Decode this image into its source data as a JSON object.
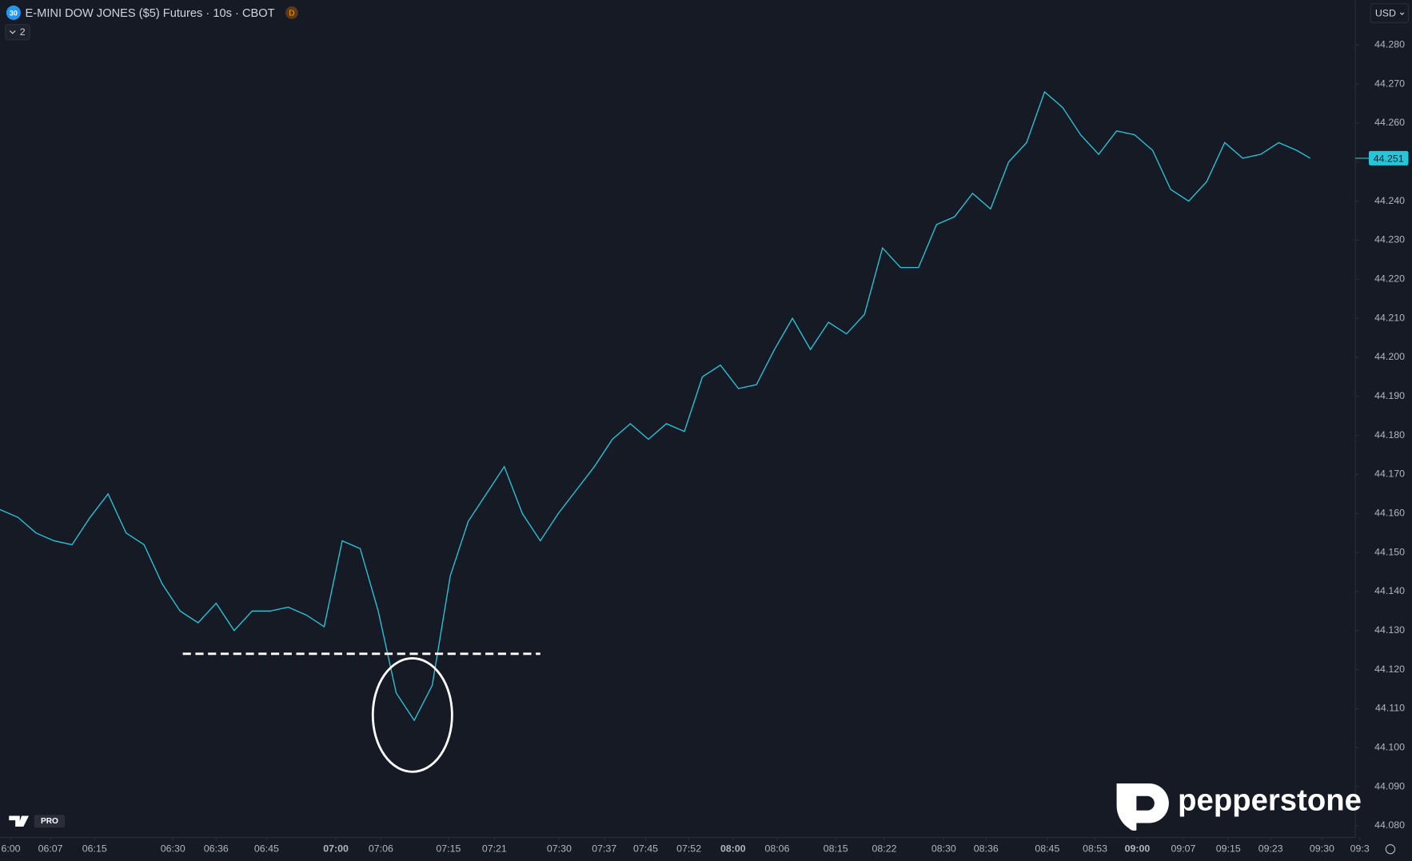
{
  "chart_data": {
    "type": "line",
    "title": "E-MINI DOW JONES ($5) Futures · 10s · CBOT",
    "color": "#26c6da",
    "x": [
      0,
      2,
      4,
      6,
      8,
      10,
      12,
      14,
      16,
      18,
      20,
      22,
      24,
      26,
      28,
      30,
      32,
      34,
      36,
      38,
      40,
      42,
      44,
      46,
      48,
      50,
      52,
      54,
      56,
      58,
      60,
      62,
      64,
      66,
      68,
      70,
      72,
      74,
      76,
      78,
      80,
      82,
      84,
      86,
      88,
      90,
      92,
      94,
      96,
      98,
      100,
      102,
      104,
      106,
      108,
      110,
      112,
      114,
      116,
      118,
      120,
      122,
      124,
      126,
      128,
      130,
      132,
      134,
      136,
      138,
      140,
      142,
      144,
      145.5
    ],
    "values": [
      44.161,
      44.159,
      44.155,
      44.153,
      44.152,
      44.159,
      44.165,
      44.155,
      44.152,
      44.142,
      44.135,
      44.132,
      44.137,
      44.13,
      44.135,
      44.135,
      44.136,
      44.134,
      44.131,
      44.153,
      44.151,
      44.135,
      44.114,
      44.107,
      44.116,
      44.144,
      44.158,
      44.165,
      44.172,
      44.16,
      44.153,
      44.16,
      44.166,
      44.172,
      44.179,
      44.183,
      44.179,
      44.183,
      44.181,
      44.195,
      44.198,
      44.192,
      44.193,
      44.202,
      44.21,
      44.202,
      44.209,
      44.206,
      44.211,
      44.228,
      44.223,
      44.223,
      44.234,
      44.236,
      44.242,
      44.238,
      44.25,
      44.255,
      44.268,
      44.264,
      44.257,
      44.252,
      44.258,
      44.257,
      44.253,
      44.243,
      44.24,
      44.245,
      44.255,
      44.251,
      44.252,
      44.255,
      44.253,
      44.251
    ],
    "xlim": [
      0,
      150.5
    ],
    "xticks": [
      {
        "value": 1.2,
        "label": "6:00"
      },
      {
        "value": 5.6,
        "label": "06:07"
      },
      {
        "value": 10.5,
        "label": "06:15"
      },
      {
        "value": 19.2,
        "label": "06:30"
      },
      {
        "value": 24,
        "label": "06:36"
      },
      {
        "value": 29.6,
        "label": "06:45"
      },
      {
        "value": 37.3,
        "label": "07:00"
      },
      {
        "value": 42.3,
        "label": "07:06"
      },
      {
        "value": 49.8,
        "label": "07:15"
      },
      {
        "value": 54.9,
        "label": "07:21"
      },
      {
        "value": 62.1,
        "label": "07:30"
      },
      {
        "value": 67.1,
        "label": "07:37"
      },
      {
        "value": 71.7,
        "label": "07:45"
      },
      {
        "value": 76.5,
        "label": "07:52"
      },
      {
        "value": 81.4,
        "label": "08:00"
      },
      {
        "value": 86.3,
        "label": "08:06"
      },
      {
        "value": 92.8,
        "label": "08:15"
      },
      {
        "value": 98.2,
        "label": "08:22"
      },
      {
        "value": 104.8,
        "label": "08:30"
      },
      {
        "value": 109.5,
        "label": "08:36"
      },
      {
        "value": 116.3,
        "label": "08:45"
      },
      {
        "value": 121.6,
        "label": "08:53"
      },
      {
        "value": 126.3,
        "label": "09:00"
      },
      {
        "value": 131.4,
        "label": "09:07"
      },
      {
        "value": 136.4,
        "label": "09:15"
      },
      {
        "value": 141.1,
        "label": "09:23"
      },
      {
        "value": 146.8,
        "label": "09:30"
      },
      {
        "value": 151,
        "label": "09:3"
      }
    ],
    "ylim": [
      44.077,
      44.2915
    ],
    "yticks": [
      {
        "value": 44.08,
        "label": "44.080"
      },
      {
        "value": 44.09,
        "label": "44.090"
      },
      {
        "value": 44.1,
        "label": "44.100"
      },
      {
        "value": 44.11,
        "label": "44.110"
      },
      {
        "value": 44.12,
        "label": "44.120"
      },
      {
        "value": 44.13,
        "label": "44.130"
      },
      {
        "value": 44.14,
        "label": "44.140"
      },
      {
        "value": 44.15,
        "label": "44.150"
      },
      {
        "value": 44.16,
        "label": "44.160"
      },
      {
        "value": 44.17,
        "label": "44.170"
      },
      {
        "value": 44.18,
        "label": "44.180"
      },
      {
        "value": 44.19,
        "label": "44.190"
      },
      {
        "value": 44.2,
        "label": "44.200"
      },
      {
        "value": 44.21,
        "label": "44.210"
      },
      {
        "value": 44.22,
        "label": "44.220"
      },
      {
        "value": 44.23,
        "label": "44.230"
      },
      {
        "value": 44.24,
        "label": "44.240"
      },
      {
        "value": 44.25,
        "label": "44.250"
      },
      {
        "value": 44.26,
        "label": "44.260"
      },
      {
        "value": 44.27,
        "label": "44.270"
      },
      {
        "value": 44.28,
        "label": "44.280"
      }
    ],
    "last_price": {
      "value": 44.251,
      "label": "44.251"
    },
    "grid": false
  },
  "ui": {
    "symbol_badge": "30",
    "exchange_badge": "D",
    "indicator_count": "2",
    "currency": "USD",
    "tv_badge": "PRO",
    "watermark": "pepperstone"
  }
}
